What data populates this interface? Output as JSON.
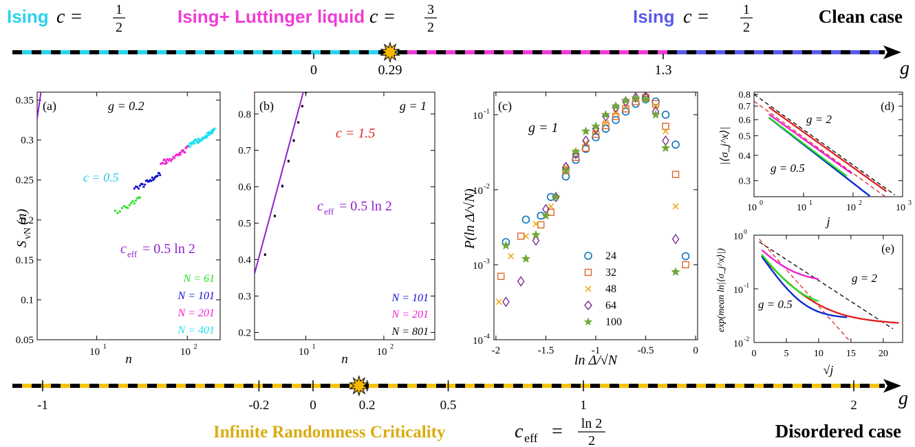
{
  "top_bar": {
    "left_model": "Ising",
    "left_c_math": "c =",
    "left_c_num": "1",
    "left_c_den": "2",
    "mid_model": "Ising+ Luttinger liquid",
    "mid_c_math": "c =",
    "mid_c_num": "3",
    "mid_c_den": "2",
    "right_model": "Ising",
    "right_c_math": "c =",
    "right_c_num": "1",
    "right_c_den": "2",
    "case_label": "Clean case",
    "axis_label": "g",
    "ticks": [
      "0",
      "0.29",
      "1.3"
    ],
    "colors": {
      "ising_left": "#29d3ee",
      "ll": "#f03cd6",
      "ising_right": "#5a5af0",
      "star": "#f7b800"
    }
  },
  "bottom_bar": {
    "title": "Infinite Randomness Criticality",
    "ceff_math": "c",
    "ceff_sub": "eff",
    "ceff_eq": "=",
    "ceff_num": "ln 2",
    "ceff_den": "2",
    "case_label": "Disordered case",
    "axis_label": "g",
    "ticks": [
      "-1",
      "-0.2",
      "0",
      "0.2",
      "0.5",
      "1",
      "2"
    ],
    "colors": {
      "band": "#f5c30a",
      "title": "#d8ac10",
      "star": "#f7b800"
    }
  },
  "chart_data": [
    {
      "id": "a",
      "type": "scatter",
      "panel_label": "(a)",
      "annotation_g": "g = 0.2",
      "annotation_c": "c = 0.5",
      "annotation_ceff": "c",
      "annotation_ceff_sub": "eff",
      "annotation_ceff_rest": "= 0.5 ln 2",
      "xlabel": "n",
      "ylabel": "S",
      "ylabel_sub": "vN",
      "ylabel_rest": "(n)",
      "xscale": "log",
      "xlim": [
        2.2,
        230
      ],
      "ylim": [
        0.05,
        0.36
      ],
      "yticks": [
        "0.05",
        "0.1",
        "0.15",
        "0.2",
        "0.25",
        "0.3",
        "0.35"
      ],
      "ytick_values": [
        0.05,
        0.1,
        0.15,
        0.2,
        0.25,
        0.3,
        0.35
      ],
      "xticks": [
        "10",
        "10"
      ],
      "xtick_exp": [
        "1",
        "2"
      ],
      "xtick_values": [
        10,
        100
      ],
      "legend": [
        "N = 61",
        "N = 101",
        "N = 201",
        "N = 401"
      ],
      "legend_colors": [
        "#20e020",
        "#1010d0",
        "#f020d0",
        "#20e0f0"
      ],
      "fit_lines": [
        {
          "kind": "solid",
          "color": "#9020d0",
          "slope": 0.3466,
          "intercept": 0.0536
        },
        {
          "kind": "dashed",
          "color": "#20c8e8",
          "slope": 0.5,
          "intercept": -0.0143
        }
      ],
      "series": [
        {
          "color": "#20e020",
          "n_max": 30,
          "plateau": 0.228
        },
        {
          "color": "#1010d0",
          "n_max": 50,
          "plateau": 0.258
        },
        {
          "color": "#f020d0",
          "n_max": 100,
          "plateau": 0.29
        },
        {
          "color": "#20e0f0",
          "n_max": 200,
          "plateau": 0.313
        }
      ]
    },
    {
      "id": "b",
      "type": "scatter",
      "panel_label": "(b)",
      "annotation_g": "g = 1",
      "annotation_c": "c = 1.5",
      "annotation_ceff": "c",
      "annotation_ceff_sub": "eff",
      "annotation_ceff_rest": "= 0.5 ln 2",
      "xlabel": "n",
      "xscale": "log",
      "xlim": [
        2.2,
        450
      ],
      "ylim": [
        0.18,
        0.86
      ],
      "yticks": [
        "0.2",
        "0.3",
        "0.4",
        "0.5",
        "0.6",
        "0.7",
        "0.8"
      ],
      "ytick_values": [
        0.2,
        0.3,
        0.4,
        0.5,
        0.6,
        0.7,
        0.8
      ],
      "xticks": [
        "10",
        "10"
      ],
      "xtick_exp": [
        "1",
        "2"
      ],
      "xtick_values": [
        10,
        100
      ],
      "legend": [
        "N = 101",
        "N = 201",
        "N = 801"
      ],
      "legend_colors": [
        "#1010d0",
        "#f020d0",
        "#000000"
      ],
      "fit_lines": [
        {
          "kind": "solid",
          "color": "#9020d0",
          "slope": 0.3466,
          "intercept": 0.0882
        },
        {
          "kind": "dashed",
          "color": "#e02020",
          "slope": 1.5,
          "intercept": -0.33
        }
      ],
      "series": [
        {
          "color": "#1010d0",
          "n_max": 50
        },
        {
          "color": "#f020d0",
          "n_max": 100
        },
        {
          "color": "#000000",
          "n_max": 400
        }
      ]
    },
    {
      "id": "c",
      "type": "scatter",
      "panel_label": "(c)",
      "annotation_g": "g = 1",
      "xlabel": "ln Δ/√N",
      "ylabel": "P(ln Δ/√N)",
      "xlim": [
        -2.02,
        0.02
      ],
      "yscale": "log",
      "ylim": [
        0.0001,
        0.2
      ],
      "xticks": [
        "-2",
        "-1.5",
        "-1",
        "-0.5",
        "0"
      ],
      "xtick_values": [
        -2,
        -1.5,
        -1,
        -0.5,
        0
      ],
      "yticks": [
        "10",
        "10",
        "10",
        "10"
      ],
      "ytick_exp": [
        "-4",
        "-3",
        "-2",
        "-1"
      ],
      "ytick_values": [
        0.0001,
        0.001,
        0.01,
        0.1
      ],
      "legend": [
        "24",
        "32",
        "48",
        "64",
        "100"
      ],
      "series": [
        {
          "name": "24",
          "marker": "circle",
          "color": "#0a72bd",
          "x": [
            -1.9,
            -1.7,
            -1.55,
            -1.45,
            -1.3,
            -1.2,
            -1.1,
            -1.0,
            -0.9,
            -0.8,
            -0.7,
            -0.6,
            -0.5,
            -0.4,
            -0.3,
            -0.2,
            -0.1
          ],
          "y": [
            0.002,
            0.004,
            0.0045,
            0.008,
            0.015,
            0.025,
            0.035,
            0.05,
            0.065,
            0.085,
            0.11,
            0.14,
            0.16,
            0.15,
            0.1,
            0.04,
            0.0013
          ]
        },
        {
          "name": "32",
          "marker": "square",
          "color": "#e0662a",
          "x": [
            -1.95,
            -1.75,
            -1.55,
            -1.45,
            -1.3,
            -1.2,
            -1.1,
            -1.0,
            -0.9,
            -0.8,
            -0.7,
            -0.6,
            -0.5,
            -0.4,
            -0.3,
            -0.2,
            -0.1
          ],
          "y": [
            0.0007,
            0.0024,
            0.0034,
            0.005,
            0.018,
            0.027,
            0.036,
            0.055,
            0.072,
            0.095,
            0.12,
            0.15,
            0.17,
            0.14,
            0.07,
            0.016,
            0.001
          ]
        },
        {
          "name": "48",
          "marker": "x",
          "color": "#eba000",
          "x": [
            -1.97,
            -1.85,
            -1.7,
            -1.6,
            -1.45,
            -1.3,
            -1.2,
            -1.1,
            -1.0,
            -0.9,
            -0.8,
            -0.7,
            -0.6,
            -0.5,
            -0.4,
            -0.3,
            -0.2
          ],
          "y": [
            0.00032,
            0.0013,
            0.0024,
            0.0035,
            0.006,
            0.02,
            0.032,
            0.042,
            0.06,
            0.078,
            0.105,
            0.13,
            0.16,
            0.17,
            0.13,
            0.06,
            0.006
          ]
        },
        {
          "name": "64",
          "marker": "diamond",
          "color": "#7a2e8e",
          "x": [
            -1.9,
            -1.75,
            -1.6,
            -1.5,
            -1.4,
            -1.3,
            -1.2,
            -1.1,
            -1.0,
            -0.9,
            -0.8,
            -0.7,
            -0.6,
            -0.5,
            -0.4,
            -0.3,
            -0.2
          ],
          "y": [
            0.00032,
            0.0006,
            0.0021,
            0.0055,
            0.008,
            0.02,
            0.03,
            0.045,
            0.065,
            0.095,
            0.125,
            0.15,
            0.17,
            0.175,
            0.11,
            0.045,
            0.0022
          ]
        },
        {
          "name": "100",
          "marker": "star",
          "color": "#6fa83a",
          "x": [
            -1.9,
            -1.7,
            -1.6,
            -1.5,
            -1.4,
            -1.3,
            -1.2,
            -1.1,
            -1.0,
            -0.9,
            -0.8,
            -0.7,
            -0.6,
            -0.5,
            -0.4,
            -0.3,
            -0.2
          ],
          "y": [
            0.0018,
            0.0012,
            0.0025,
            0.0045,
            0.008,
            0.018,
            0.032,
            0.06,
            0.07,
            0.1,
            0.13,
            0.155,
            0.165,
            0.16,
            0.1,
            0.036,
            0.0008
          ]
        }
      ]
    },
    {
      "id": "d",
      "type": "line",
      "panel_label": "(d)",
      "annotation_g2": "g = 2",
      "annotation_g05": "g = 0.5",
      "xlabel": "j",
      "ylabel": "|⟨σ_j^x⟩|",
      "xscale": "log",
      "yscale": "log",
      "xlim": [
        1,
        1000
      ],
      "ylim": [
        0.25,
        0.82
      ],
      "xticks": [
        "10",
        "10",
        "10",
        "10"
      ],
      "xtick_exp": [
        "0",
        "1",
        "2",
        "3"
      ],
      "xtick_values": [
        1,
        10,
        100,
        1000
      ],
      "yticks": [
        "0.3",
        "0.4",
        "0.5",
        "0.6",
        "0.7",
        "0.8"
      ],
      "ytick_values": [
        0.3,
        0.4,
        0.5,
        0.6,
        0.7,
        0.8
      ]
    },
    {
      "id": "e",
      "type": "line",
      "panel_label": "(e)",
      "annotation_g2": "g = 2",
      "annotation_g05": "g = 0.5",
      "xlabel": "√j",
      "ylabel": "exp(mean ln|⟨σ_j^x⟩|)",
      "yscale": "log",
      "xlim": [
        0,
        23
      ],
      "ylim": [
        0.01,
        1
      ],
      "xticks": [
        "0",
        "5",
        "10",
        "15",
        "20"
      ],
      "xtick_values": [
        0,
        5,
        10,
        15,
        20
      ],
      "yticks": [
        "10",
        "10",
        "10"
      ],
      "ytick_exp": [
        "-2",
        "-1",
        "0"
      ],
      "ytick_values": [
        0.01,
        0.1,
        1
      ]
    }
  ]
}
